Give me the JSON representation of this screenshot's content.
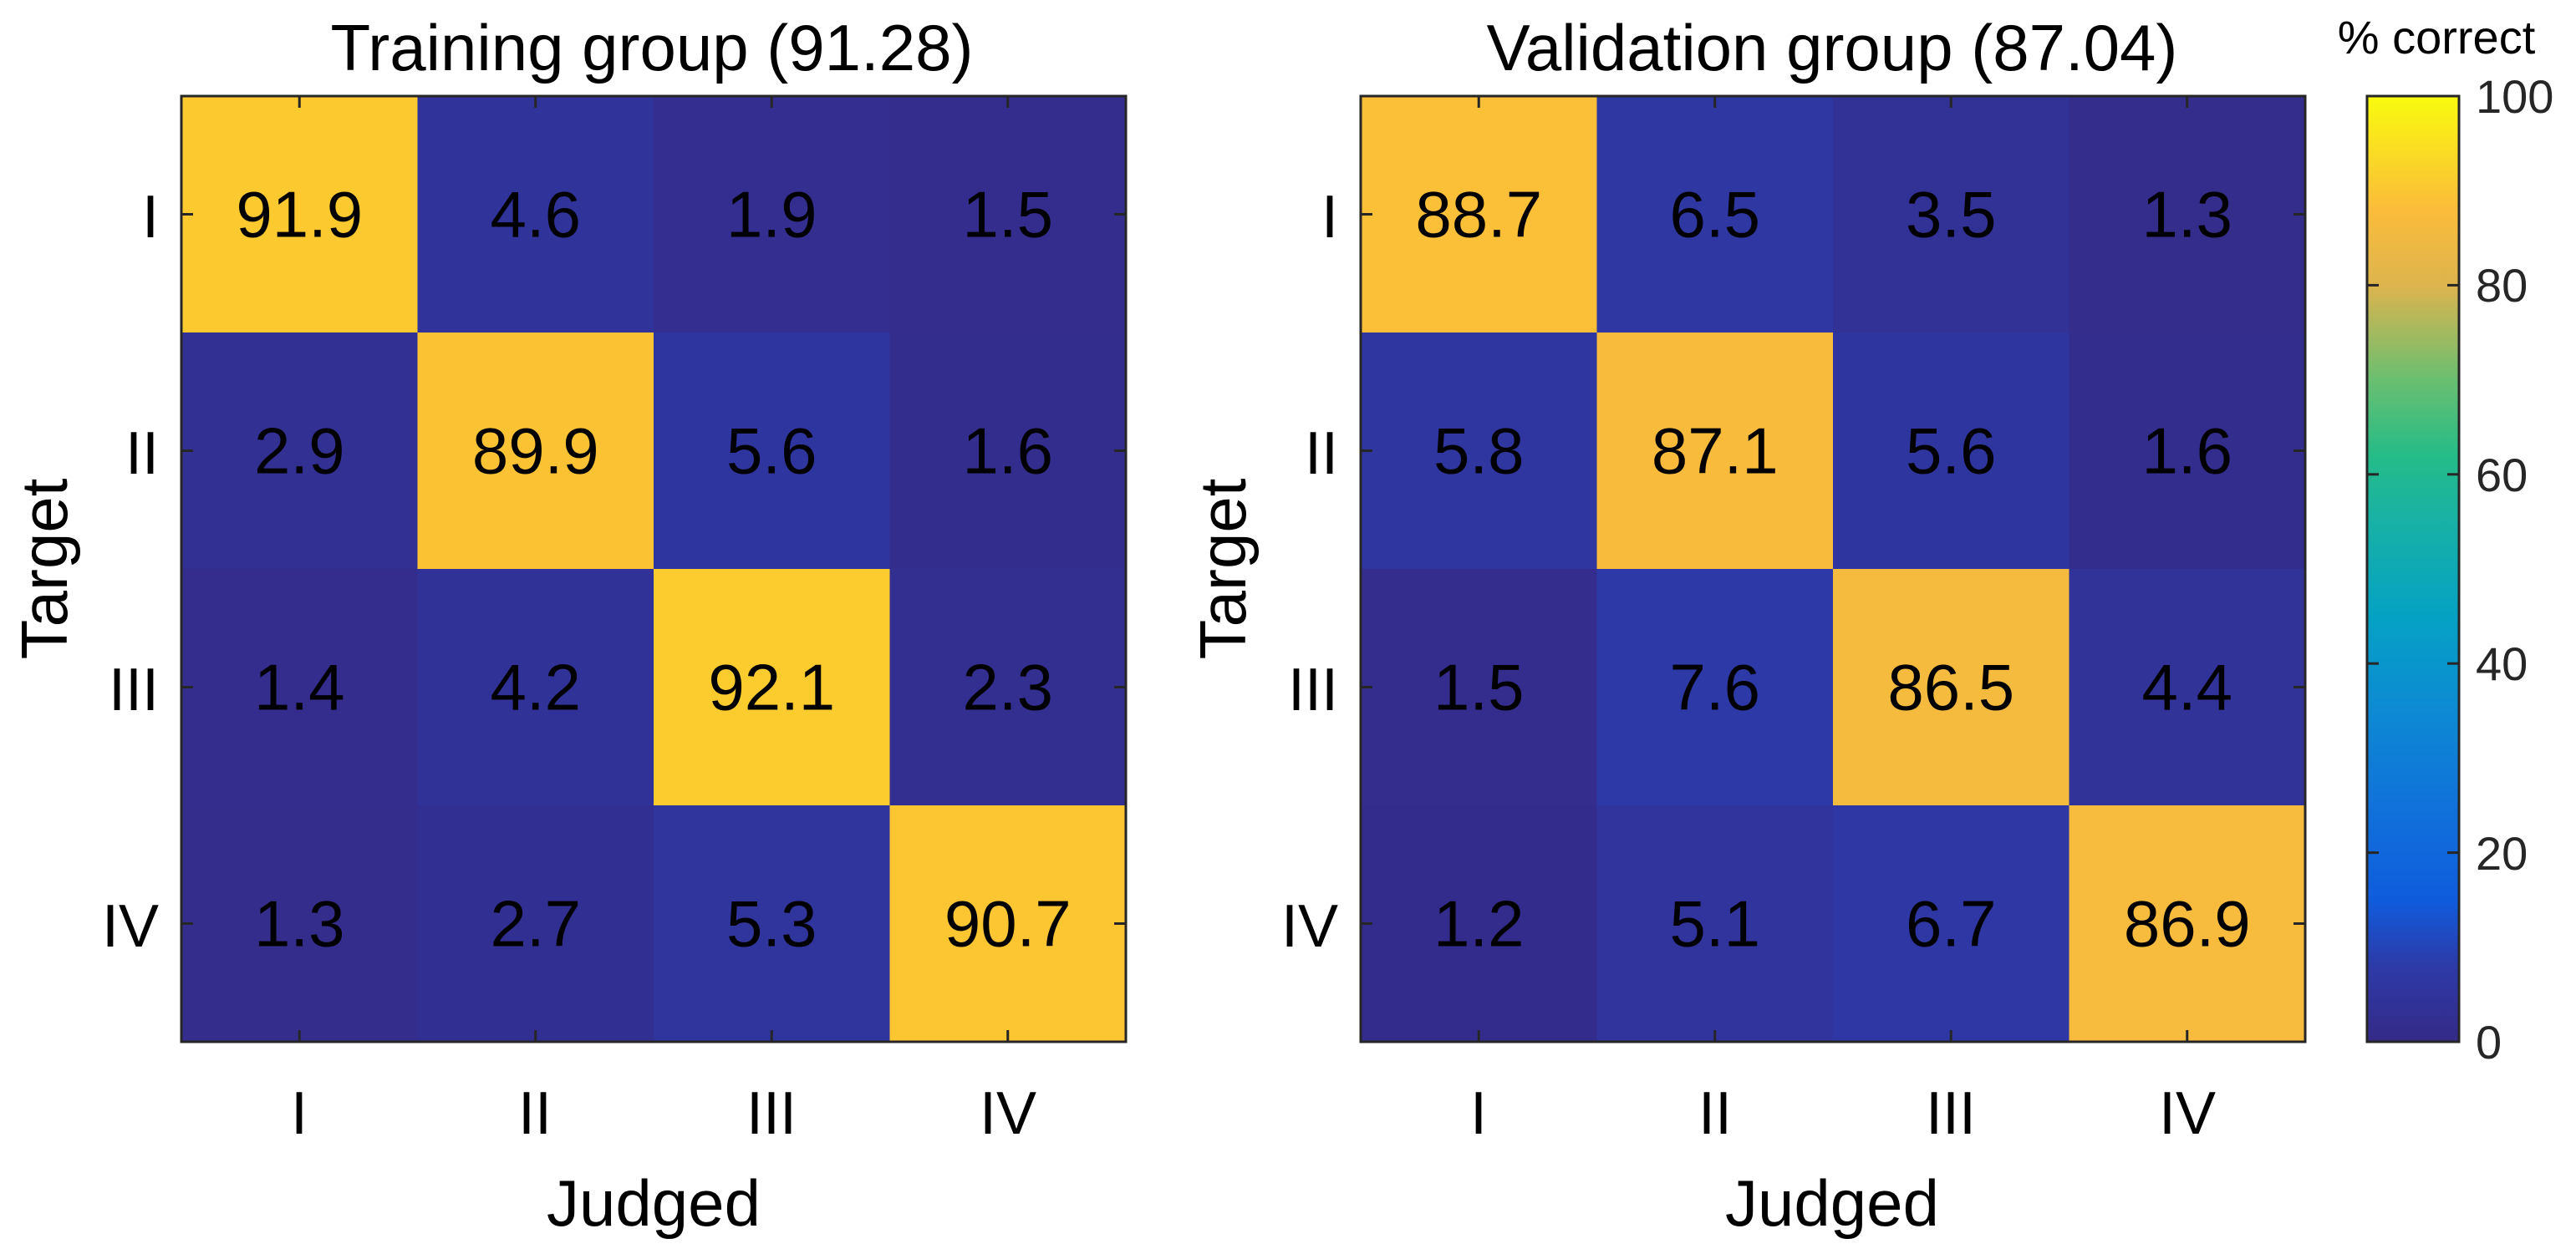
{
  "chart_data": {
    "type": "heatmap",
    "colorbar": {
      "title": "% correct",
      "range": [
        0,
        100
      ],
      "ticks": [
        "0",
        "20",
        "40",
        "60",
        "80",
        "100"
      ]
    },
    "panels": [
      {
        "title": "Training group (91.28)",
        "xlabel": "Judged",
        "ylabel": "Target",
        "x_categories": [
          "I",
          "II",
          "III",
          "IV"
        ],
        "y_categories": [
          "I",
          "II",
          "III",
          "IV"
        ],
        "values": [
          [
            91.9,
            4.6,
            1.9,
            1.5
          ],
          [
            2.9,
            89.9,
            5.6,
            1.6
          ],
          [
            1.4,
            4.2,
            92.1,
            2.3
          ],
          [
            1.3,
            2.7,
            5.3,
            90.7
          ]
        ],
        "value_labels": [
          [
            "91.9",
            "4.6",
            "1.9",
            "1.5"
          ],
          [
            "2.9",
            "89.9",
            "5.6",
            "1.6"
          ],
          [
            "1.4",
            "4.2",
            "92.1",
            "2.3"
          ],
          [
            "1.3",
            "2.7",
            "5.3",
            "90.7"
          ]
        ]
      },
      {
        "title": "Validation group (87.04)",
        "xlabel": "Judged",
        "ylabel": "Target",
        "x_categories": [
          "I",
          "II",
          "III",
          "IV"
        ],
        "y_categories": [
          "I",
          "II",
          "III",
          "IV"
        ],
        "values": [
          [
            88.7,
            6.5,
            3.5,
            1.3
          ],
          [
            5.8,
            87.1,
            5.6,
            1.6
          ],
          [
            1.5,
            7.6,
            86.5,
            4.4
          ],
          [
            1.2,
            5.1,
            6.7,
            86.9
          ]
        ],
        "value_labels": [
          [
            "88.7",
            "6.5",
            "3.5",
            "1.3"
          ],
          [
            "5.8",
            "87.1",
            "5.6",
            "1.6"
          ],
          [
            "1.5",
            "7.6",
            "86.5",
            "4.4"
          ],
          [
            "1.2",
            "5.1",
            "6.7",
            "86.9"
          ]
        ]
      }
    ]
  }
}
